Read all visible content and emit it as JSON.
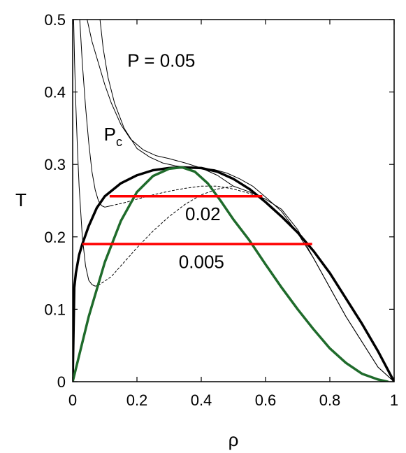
{
  "chart_data": {
    "type": "line",
    "title": "",
    "xlabel": "ρ",
    "ylabel": "T",
    "xlim": [
      0,
      1
    ],
    "ylim": [
      0,
      0.5
    ],
    "xticks": [
      0,
      0.2,
      0.4,
      0.6,
      0.8,
      1
    ],
    "xtick_labels": [
      "0",
      "0.2",
      "0.4",
      "0.6",
      "0.8",
      "1"
    ],
    "yticks": [
      0,
      0.1,
      0.2,
      0.3,
      0.4,
      0.5
    ],
    "ytick_labels": [
      "0",
      "0.1",
      "0.2",
      "0.3",
      "0.4",
      "0.5"
    ],
    "grid": false,
    "legend": "none",
    "annotations": [
      {
        "id": "p005",
        "text": "P = 0.05",
        "x": 0.17,
        "y": 0.435
      },
      {
        "id": "pc",
        "text": "P",
        "sub": "c",
        "x": 0.097,
        "y": 0.333
      },
      {
        "id": "p002",
        "text": "0.02",
        "x": 0.35,
        "y": 0.223
      },
      {
        "id": "p0005",
        "text": "0.005",
        "x": 0.33,
        "y": 0.157
      }
    ],
    "series": [
      {
        "id": "isotherm-p005",
        "style": "thin",
        "color": "#000000",
        "x": [
          0.045,
          0.06,
          0.08,
          0.1,
          0.12,
          0.15,
          0.18,
          0.22,
          0.26,
          0.3,
          0.35,
          0.4,
          0.45,
          0.5,
          0.55,
          0.6,
          0.65,
          0.7,
          0.75,
          0.8,
          0.85,
          0.9,
          0.95,
          1.0
        ],
        "y": [
          0.5,
          0.47,
          0.44,
          0.41,
          0.385,
          0.355,
          0.335,
          0.32,
          0.312,
          0.308,
          0.302,
          0.295,
          0.285,
          0.27,
          0.262,
          0.252,
          0.238,
          0.21,
          0.17,
          0.13,
          0.09,
          0.055,
          0.02,
          0.0
        ]
      },
      {
        "id": "isotherm-pc",
        "style": "thin",
        "color": "#000000",
        "x": [
          0.085,
          0.095,
          0.11,
          0.13,
          0.16,
          0.2,
          0.24,
          0.28,
          0.32,
          0.36,
          0.4,
          0.44,
          0.48,
          0.52,
          0.56,
          0.6,
          0.65,
          0.7,
          0.75,
          0.8,
          0.85,
          0.9,
          0.95,
          1.0
        ],
        "y": [
          0.5,
          0.46,
          0.42,
          0.385,
          0.35,
          0.322,
          0.31,
          0.302,
          0.298,
          0.296,
          0.295,
          0.293,
          0.288,
          0.28,
          0.27,
          0.255,
          0.235,
          0.205,
          0.17,
          0.13,
          0.09,
          0.055,
          0.02,
          0.0
        ]
      },
      {
        "id": "isotherm-p002",
        "style": "thin",
        "color": "#000000",
        "x": [
          0.022,
          0.03,
          0.04,
          0.05,
          0.06,
          0.07,
          0.08,
          0.09,
          0.1,
          0.12
        ],
        "y": [
          0.5,
          0.44,
          0.38,
          0.33,
          0.29,
          0.265,
          0.25,
          0.243,
          0.241,
          0.243
        ]
      },
      {
        "id": "isotherm-p002-metastable",
        "style": "dashed",
        "color": "#000000",
        "x": [
          0.12,
          0.16,
          0.2,
          0.25,
          0.3,
          0.35,
          0.4,
          0.45,
          0.5,
          0.55,
          0.6
        ],
        "y": [
          0.243,
          0.247,
          0.252,
          0.258,
          0.263,
          0.267,
          0.27,
          0.27,
          0.266,
          0.26,
          0.252
        ]
      },
      {
        "id": "isotherm-p0005",
        "style": "thin",
        "color": "#000000",
        "x": [
          0.003,
          0.006,
          0.01,
          0.015,
          0.02,
          0.03,
          0.04,
          0.05,
          0.06,
          0.07,
          0.08
        ],
        "y": [
          0.5,
          0.44,
          0.38,
          0.32,
          0.27,
          0.2,
          0.16,
          0.14,
          0.134,
          0.132,
          0.133
        ]
      },
      {
        "id": "isotherm-p0005-metastable",
        "style": "dashed",
        "color": "#000000",
        "x": [
          0.08,
          0.12,
          0.16,
          0.2,
          0.25,
          0.3,
          0.35,
          0.4,
          0.45,
          0.5
        ],
        "y": [
          0.133,
          0.145,
          0.165,
          0.185,
          0.208,
          0.228,
          0.245,
          0.258,
          0.266,
          0.27
        ]
      },
      {
        "id": "binodal",
        "style": "thick",
        "color": "#000000",
        "x": [
          0.0,
          0.005,
          0.01,
          0.02,
          0.03,
          0.05,
          0.075,
          0.1,
          0.15,
          0.2,
          0.25,
          0.3,
          0.34,
          0.4,
          0.45,
          0.5,
          0.55,
          0.6,
          0.65,
          0.7,
          0.75,
          0.8,
          0.85,
          0.9,
          0.95,
          1.0
        ],
        "y": [
          0.0,
          0.13,
          0.15,
          0.175,
          0.19,
          0.215,
          0.24,
          0.256,
          0.274,
          0.285,
          0.292,
          0.295,
          0.296,
          0.295,
          0.29,
          0.28,
          0.266,
          0.248,
          0.228,
          0.206,
          0.18,
          0.15,
          0.115,
          0.08,
          0.042,
          0.0
        ]
      },
      {
        "id": "spinodal",
        "style": "thick",
        "color": "#1f6b2b",
        "x": [
          0.0,
          0.05,
          0.1,
          0.15,
          0.2,
          0.25,
          0.3,
          0.34,
          0.38,
          0.42,
          0.46,
          0.5,
          0.55,
          0.6,
          0.65,
          0.7,
          0.75,
          0.8,
          0.85,
          0.9,
          0.95,
          0.98
        ],
        "y": [
          0.0,
          0.09,
          0.165,
          0.222,
          0.262,
          0.284,
          0.294,
          0.296,
          0.29,
          0.274,
          0.25,
          0.224,
          0.195,
          0.162,
          0.13,
          0.1,
          0.072,
          0.046,
          0.026,
          0.011,
          0.003,
          0.0
        ]
      },
      {
        "id": "tieline-p002",
        "style": "red",
        "color": "#ff0000",
        "x": [
          0.115,
          0.59
        ],
        "y": [
          0.256,
          0.256
        ]
      },
      {
        "id": "tieline-p0005",
        "style": "red",
        "color": "#ff0000",
        "x": [
          0.03,
          0.745
        ],
        "y": [
          0.19,
          0.19
        ]
      }
    ]
  }
}
